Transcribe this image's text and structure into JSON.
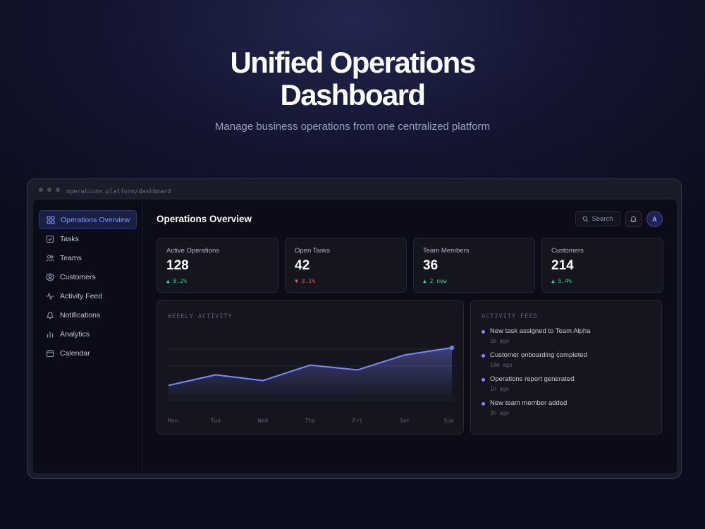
{
  "hero": {
    "title_line1": "Unified Operations",
    "title_line2": "Dashboard",
    "subtitle": "Manage business operations from one centralized platform"
  },
  "window": {
    "url": "operations.platform/dashboard"
  },
  "sidebar": {
    "items": [
      {
        "label": "Operations Overview",
        "icon": "grid-icon",
        "active": true
      },
      {
        "label": "Tasks",
        "icon": "checkbox-icon"
      },
      {
        "label": "Teams",
        "icon": "users-icon"
      },
      {
        "label": "Customers",
        "icon": "user-circle-icon"
      },
      {
        "label": "Activity Feed",
        "icon": "pulse-icon"
      },
      {
        "label": "Notifications",
        "icon": "bell-icon"
      },
      {
        "label": "Analytics",
        "icon": "bar-chart-icon"
      },
      {
        "label": "Calendar",
        "icon": "calendar-icon"
      }
    ]
  },
  "header": {
    "title": "Operations Overview",
    "search_label": "Search",
    "avatar_initial": "A"
  },
  "stats": [
    {
      "label": "Active Operations",
      "value": "128",
      "delta": "▲ 8.2%",
      "trend": "up"
    },
    {
      "label": "Open Tasks",
      "value": "42",
      "delta": "▼ 3.1%",
      "trend": "down"
    },
    {
      "label": "Team Members",
      "value": "36",
      "delta": "▲ 2 new",
      "trend": "up"
    },
    {
      "label": "Customers",
      "value": "214",
      "delta": "▲ 5.4%",
      "trend": "up"
    }
  ],
  "weekly_activity": {
    "title": "WEEKLY ACTIVITY"
  },
  "chart_data": {
    "type": "area",
    "title": "WEEKLY ACTIVITY",
    "categories": [
      "Mon",
      "Tue",
      "Wed",
      "Thu",
      "Fri",
      "Sat",
      "Sun"
    ],
    "series": [
      {
        "values": [
          30,
          52,
          40,
          72,
          62,
          93,
          108
        ]
      }
    ],
    "ylim": [
      0,
      140
    ],
    "grid": true,
    "line_color": "#7c88ff"
  },
  "activity_feed": {
    "title": "ACTIVITY FEED",
    "items": [
      {
        "text": "New task assigned to Team Alpha",
        "time": "2m ago"
      },
      {
        "text": "Customer onboarding completed",
        "time": "18m ago"
      },
      {
        "text": "Operations report generated",
        "time": "1h ago"
      },
      {
        "text": "New team member added",
        "time": "3h ago"
      }
    ]
  },
  "colors": {
    "accent": "#7c88ff",
    "positive": "#3ecf8e",
    "negative": "#ef5b5b"
  }
}
